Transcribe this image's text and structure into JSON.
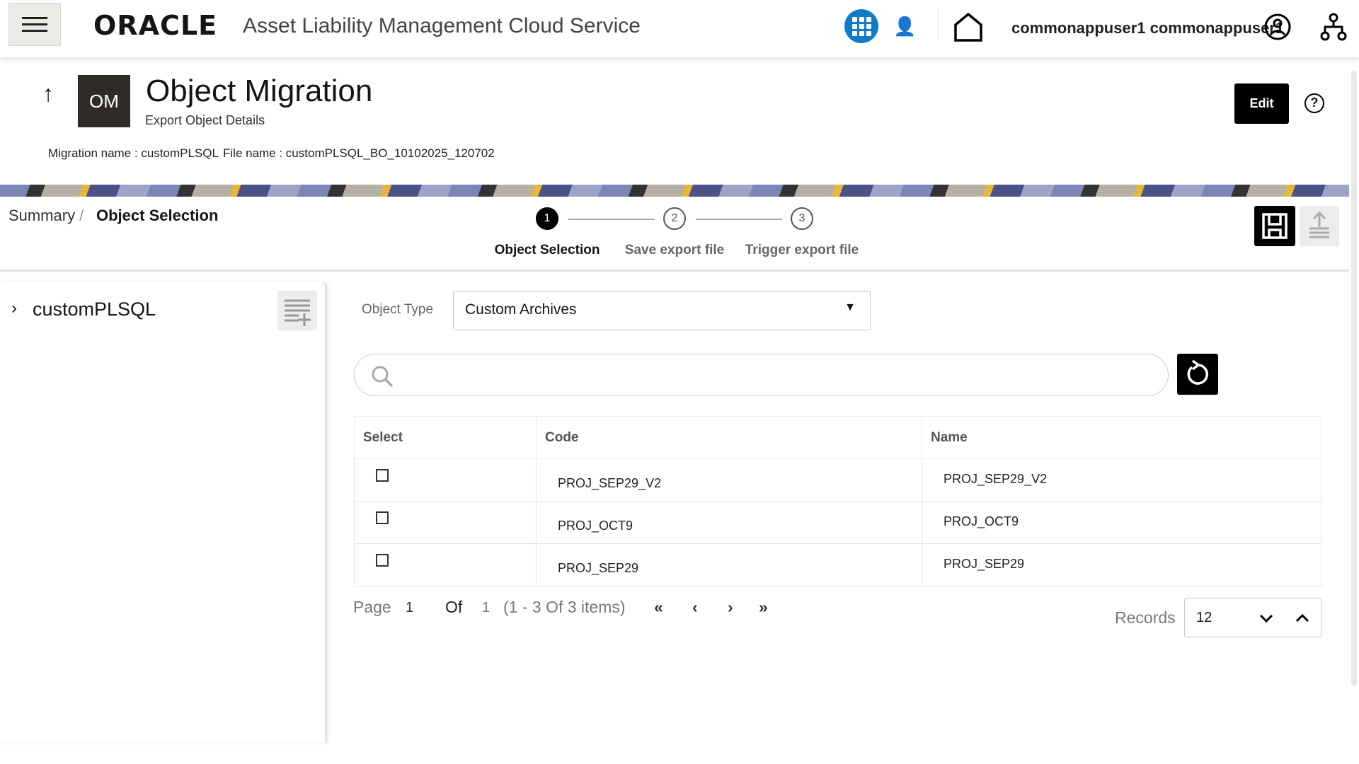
{
  "header": {
    "logo": "ORACLE",
    "app_title": "Asset Liability Management Cloud Service",
    "username": "commonappuser1 commonappuser1",
    "brand_color": "#0f7bc9"
  },
  "page": {
    "badge": "OM",
    "title": "Object Migration",
    "subtitle": "Export Object Details",
    "edit_label": "Edit",
    "migration_info": "Migration name : customPLSQL",
    "file_info": "File name : customPLSQL_BO_10102025_120702"
  },
  "breadcrumb": {
    "parent": "Summary",
    "separator": "/",
    "current": "Object Selection"
  },
  "stepper": [
    {
      "num": "1",
      "label": "Object Selection",
      "active": true
    },
    {
      "num": "2",
      "label": "Save export file"
    },
    {
      "num": "3",
      "label": "Trigger export file"
    }
  ],
  "tree": {
    "item": "customPLSQL"
  },
  "filter": {
    "label": "Object Type",
    "value": "Custom Archives"
  },
  "search": {
    "placeholder": ""
  },
  "table": {
    "headers": [
      "Select",
      "Code",
      "Name"
    ],
    "rows": [
      {
        "code": "PROJ_SEP29_V2",
        "name": "PROJ_SEP29_V2"
      },
      {
        "code": "PROJ_OCT9",
        "name": "PROJ_OCT9"
      },
      {
        "code": "PROJ_SEP29",
        "name": "PROJ_SEP29"
      }
    ]
  },
  "pagination": {
    "page_label": "Page",
    "page": "1",
    "of_label": "Of",
    "total_pages": "1",
    "summary": "(1 - 3 Of 3 items)",
    "records_label": "Records",
    "records": "12"
  }
}
